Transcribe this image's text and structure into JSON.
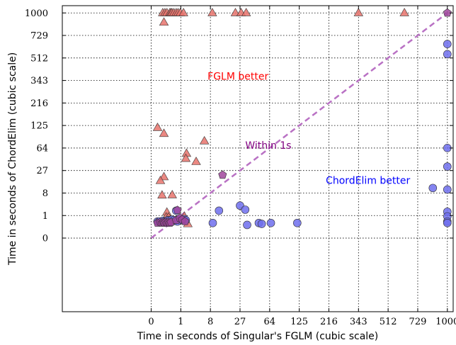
{
  "chart_data": {
    "type": "scatter",
    "scale": "cubic",
    "xlabel": "Time in seconds of Singular's FGLM (cubic scale)",
    "ylabel": "Time in seconds of ChordElim (cubic scale)",
    "xlim": [
      -27,
      1060
    ],
    "ylim": [
      -35,
      1100
    ],
    "xticks": [
      0,
      1,
      8,
      27,
      64,
      125,
      216,
      343,
      512,
      729,
      1000
    ],
    "yticks": [
      0,
      1,
      8,
      27,
      64,
      125,
      216,
      343,
      512,
      729,
      1000
    ],
    "grid": true,
    "diagonal": {
      "style": "dashed",
      "color": "#b971c4",
      "points": [
        [
          0,
          0
        ],
        [
          1000,
          1000
        ]
      ]
    },
    "annotations": [
      {
        "text": "FGLM better",
        "x": 8,
        "y": 371,
        "color": "#ff0000"
      },
      {
        "text": "Within 1s",
        "x": 35,
        "y": 70,
        "color": "#800080"
      },
      {
        "text": "ChordElim better",
        "x": 215,
        "y": 17,
        "color": "#0000ff"
      }
    ],
    "series": [
      {
        "marker": "triangle",
        "color": "#e8736c",
        "points": [
          [
            0.06,
            1000
          ],
          [
            0.1,
            1000
          ],
          [
            0.15,
            1000
          ],
          [
            0.25,
            1000
          ],
          [
            0.3,
            1000
          ],
          [
            0.35,
            1000
          ],
          [
            0.45,
            1000
          ],
          [
            0.6,
            1000
          ],
          [
            0.75,
            1000
          ],
          [
            0.95,
            1000
          ],
          [
            1.3,
            1000
          ],
          [
            8.8,
            1000
          ],
          [
            23,
            1000
          ],
          [
            28,
            1000
          ],
          [
            33,
            1000
          ],
          [
            343,
            1000
          ],
          [
            625,
            1000
          ],
          [
            0.08,
            880
          ],
          [
            0.01,
            118
          ],
          [
            0.08,
            100
          ],
          [
            5.8,
            80
          ],
          [
            1.7,
            53
          ],
          [
            1.6,
            44
          ],
          [
            3.5,
            39
          ],
          [
            0.08,
            20
          ],
          [
            0.03,
            16.5
          ],
          [
            0.05,
            6.9
          ],
          [
            0.36,
            7
          ],
          [
            0.15,
            1.5
          ],
          [
            0.13,
            0.8
          ],
          [
            0.2,
            0.8
          ],
          [
            1.4,
            0.9
          ],
          [
            1.9,
            0.25
          ]
        ]
      },
      {
        "marker": "circle",
        "color": "#6f6fed",
        "points": [
          [
            1000,
            640
          ],
          [
            1000,
            545
          ],
          [
            1000,
            64
          ],
          [
            1000,
            32
          ],
          [
            1000,
            10
          ],
          [
            1000,
            1.6
          ],
          [
            1000,
            0.9
          ],
          [
            1000,
            0.4
          ],
          [
            1000,
            0.3
          ],
          [
            860,
            11
          ],
          [
            27,
            3
          ],
          [
            32,
            2
          ],
          [
            12,
            1.8
          ],
          [
            9,
            0.3
          ],
          [
            34,
            0.2
          ],
          [
            48,
            0.3
          ],
          [
            52,
            0.25
          ],
          [
            66,
            0.3
          ],
          [
            120,
            0.3
          ],
          [
            0.6,
            1.8
          ],
          [
            0.01,
            0.4
          ],
          [
            0.02,
            0.4
          ],
          [
            0.06,
            0.45
          ],
          [
            0.1,
            0.4
          ],
          [
            0.18,
            0.5
          ],
          [
            0.25,
            0.5
          ],
          [
            0.35,
            0.55
          ],
          [
            0.5,
            0.45
          ],
          [
            0.8,
            0.6
          ],
          [
            1.0,
            0.5
          ],
          [
            1.2,
            0.5
          ],
          [
            1.4,
            0.6
          ],
          [
            1.6,
            0.5
          ],
          [
            0.45,
            0.5
          ],
          [
            0.7,
            0.4
          ]
        ]
      },
      {
        "marker": "pentagon",
        "color": "#a0459c",
        "points": [
          [
            1000,
            1000
          ],
          [
            14,
            22
          ],
          [
            0.7,
            1.9
          ],
          [
            0.01,
            0.3
          ],
          [
            0.03,
            0.35
          ],
          [
            0.05,
            0.3
          ],
          [
            0.07,
            0.35
          ],
          [
            0.09,
            0.3
          ],
          [
            0.12,
            0.35
          ],
          [
            0.16,
            0.3
          ],
          [
            0.2,
            0.35
          ],
          [
            0.25,
            0.3
          ],
          [
            0.3,
            0.35
          ],
          [
            0.6,
            0.5
          ],
          [
            0.9,
            0.7
          ],
          [
            1.15,
            0.55
          ],
          [
            1.5,
            0.4
          ]
        ]
      }
    ]
  }
}
